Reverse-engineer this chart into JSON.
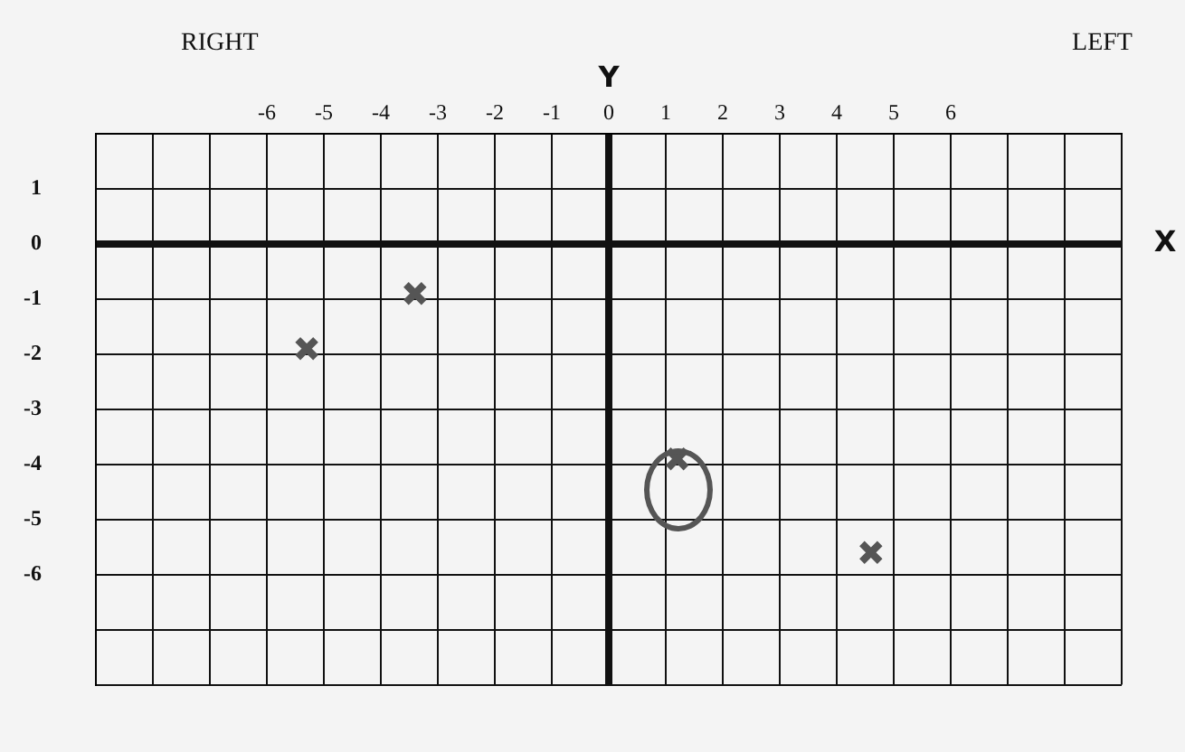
{
  "chart_data": {
    "type": "scatter",
    "xlabel": "X",
    "ylabel": "Y",
    "annotations": [
      "RIGHT",
      "LEFT"
    ],
    "series": [
      {
        "color": "#555555",
        "x": [
          -5.3,
          -3.4,
          1.2,
          4.6
        ],
        "values": [
          -1.9,
          -0.9,
          -3.9,
          -5.6
        ]
      }
    ],
    "xlim": [
      -9,
      9
    ],
    "xticks": [
      {
        "value": -9,
        "label": null
      },
      {
        "value": -8,
        "label": null
      },
      {
        "value": -7,
        "label": null
      },
      -6,
      -5,
      -4,
      -3,
      -2,
      -1,
      0,
      1,
      2,
      3,
      4,
      5,
      6,
      {
        "value": 7,
        "label": null
      },
      {
        "value": 8,
        "label": null
      },
      {
        "value": 9,
        "label": null
      }
    ],
    "ylim": [
      -8,
      2
    ],
    "yticks": [
      {
        "value": -8,
        "label": null
      },
      {
        "value": -7,
        "label": null
      },
      -6,
      -5,
      -4,
      -3,
      -2,
      -1,
      0,
      1,
      {
        "value": 2,
        "label": null
      }
    ],
    "grid": true,
    "marker": "cross",
    "legend": false
  }
}
